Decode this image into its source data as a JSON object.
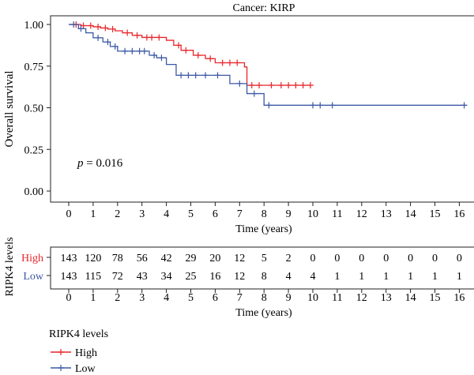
{
  "chart_data": {
    "type": "line",
    "title": "Cancer: KIRP",
    "xlabel": "Time (years)",
    "ylabel": "Overall survival",
    "xlim": [
      0,
      16
    ],
    "ylim": [
      0,
      1
    ],
    "xticks": [
      0,
      1,
      2,
      3,
      4,
      5,
      6,
      7,
      8,
      9,
      10,
      11,
      12,
      13,
      14,
      15,
      16
    ],
    "yticks": [
      "0.00",
      "0.25",
      "0.50",
      "0.75",
      "1.00"
    ],
    "annotation": {
      "italic": "p",
      "rest": " = 0.016"
    },
    "series": [
      {
        "name": "High",
        "color": "#e8262b",
        "steps": [
          [
            0,
            1.0
          ],
          [
            0.5,
            0.993
          ],
          [
            1.0,
            0.986
          ],
          [
            1.3,
            0.979
          ],
          [
            1.6,
            0.972
          ],
          [
            1.9,
            0.962
          ],
          [
            2.2,
            0.95
          ],
          [
            2.6,
            0.935
          ],
          [
            3.0,
            0.922
          ],
          [
            3.6,
            0.922
          ],
          [
            4.0,
            0.905
          ],
          [
            4.3,
            0.875
          ],
          [
            4.6,
            0.845
          ],
          [
            5.1,
            0.815
          ],
          [
            5.6,
            0.795
          ],
          [
            6.0,
            0.77
          ],
          [
            7.2,
            0.745
          ],
          [
            7.3,
            0.635
          ],
          [
            9.9,
            0.635
          ]
        ],
        "censors": [
          0.3,
          0.6,
          0.9,
          1.2,
          1.5,
          1.8,
          2.4,
          2.8,
          3.2,
          3.4,
          3.7,
          4.5,
          4.8,
          5.3,
          5.8,
          6.3,
          6.6,
          6.9,
          7.5,
          7.8,
          8.3,
          8.7,
          9.0,
          9.3,
          9.6,
          9.9
        ]
      },
      {
        "name": "Low",
        "color": "#3c59a6",
        "steps": [
          [
            0,
            1.0
          ],
          [
            0.4,
            0.975
          ],
          [
            0.7,
            0.95
          ],
          [
            1.0,
            0.92
          ],
          [
            1.4,
            0.895
          ],
          [
            1.7,
            0.868
          ],
          [
            2.0,
            0.84
          ],
          [
            3.3,
            0.815
          ],
          [
            3.6,
            0.8
          ],
          [
            4.0,
            0.76
          ],
          [
            4.4,
            0.695
          ],
          [
            6.6,
            0.645
          ],
          [
            7.3,
            0.585
          ],
          [
            8.0,
            0.515
          ],
          [
            16.3,
            0.515
          ]
        ],
        "censors": [
          0.2,
          0.5,
          1.2,
          1.6,
          1.9,
          2.3,
          2.6,
          2.9,
          3.1,
          3.5,
          3.8,
          4.6,
          4.9,
          5.2,
          5.6,
          6.1,
          7.0,
          7.6,
          8.2,
          10.0,
          10.3,
          10.8,
          16.2
        ]
      }
    ],
    "risk_table": {
      "title": "RIPK4 levels",
      "times": [
        0,
        1,
        2,
        3,
        4,
        5,
        6,
        7,
        8,
        9,
        10,
        11,
        12,
        13,
        14,
        15,
        16
      ],
      "xlabel": "Time (years)",
      "rows": [
        {
          "label": "High",
          "color": "#e8262b",
          "values": [
            "143",
            "120",
            "78",
            "56",
            "42",
            "29",
            "20",
            "12",
            "5",
            "2",
            "0",
            "0",
            "0",
            "0",
            "0",
            "0",
            "0"
          ]
        },
        {
          "label": "Low",
          "color": "#3c59a6",
          "values": [
            "143",
            "115",
            "72",
            "43",
            "34",
            "25",
            "16",
            "12",
            "8",
            "4",
            "4",
            "1",
            "1",
            "1",
            "1",
            "1",
            "1"
          ]
        }
      ]
    },
    "legend": {
      "title": "RIPK4 levels",
      "placement": "bottom-left",
      "items": [
        {
          "label": "High",
          "color": "#e8262b"
        },
        {
          "label": "Low",
          "color": "#3c59a6"
        }
      ]
    }
  }
}
